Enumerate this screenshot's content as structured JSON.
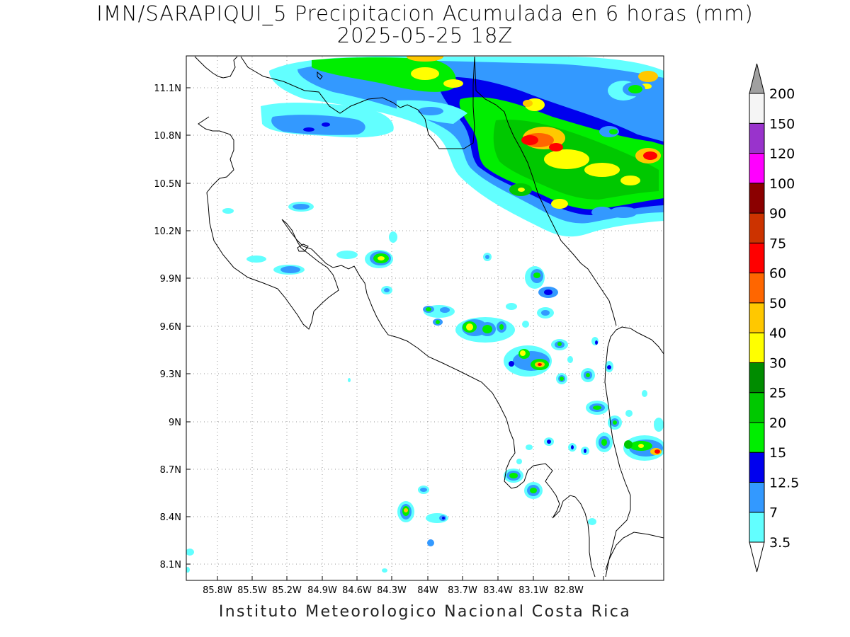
{
  "title": {
    "line1": "IMN/SARAPIQUI_5 Precipitacion Acumulada en 6 horas (mm)",
    "line2": "2025-05-25 18Z"
  },
  "footer": "Instituto Meteorologico Nacional Costa Rica",
  "axes": {
    "x_ticks": [
      "85.8W",
      "85.5W",
      "85.2W",
      "84.9W",
      "84.6W",
      "84.3W",
      "84W",
      "83.7W",
      "83.4W",
      "83.1W",
      "82.8W"
    ],
    "y_ticks": [
      "11.1N",
      "10.8N",
      "10.5N",
      "10.2N",
      "9.9N",
      "9.6N",
      "9.3N",
      "9N",
      "8.7N",
      "8.4N",
      "8.1N"
    ]
  },
  "colorbar": {
    "colors": [
      "#62ffff",
      "#3399ff",
      "#0000ee",
      "#00ee00",
      "#00c800",
      "#008c00",
      "#ffff00",
      "#ffc800",
      "#ff6600",
      "#ff0000",
      "#cc3300",
      "#8b0000",
      "#ff00ff",
      "#9933cc",
      "#f5f5f5"
    ],
    "labels": [
      "3.5",
      "7",
      "12.5",
      "15",
      "20",
      "25",
      "30",
      "40",
      "50",
      "60",
      "75",
      "90",
      "100",
      "120",
      "150",
      "200"
    ],
    "over_color": "#a0a0a0"
  }
}
